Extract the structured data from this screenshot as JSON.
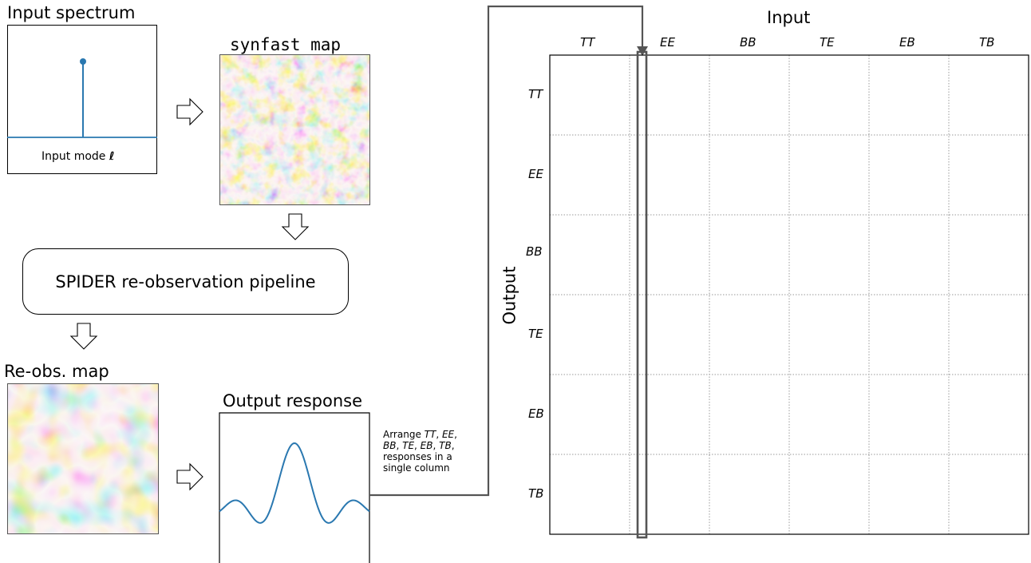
{
  "input_spectrum": {
    "title": "Input spectrum",
    "xlabel": "Input mode ",
    "xlabel_symbol": "ℓ"
  },
  "synfast_map": {
    "title": "synfast map"
  },
  "pipeline": {
    "label": "SPIDER re-observation pipeline"
  },
  "reobs_map": {
    "title": "Re-obs. map"
  },
  "output_response": {
    "title": "Output response"
  },
  "arrange_note": {
    "prefix": "Arrange ",
    "tt": "TT",
    "sep1": ", ",
    "ee": "EE",
    "sep2": ",",
    "bb": "BB",
    "sep3": ", ",
    "te": "TE",
    "sep4": ", ",
    "eb": "EB",
    "sep5": ", ",
    "tb": "TB",
    "sep6": ",",
    "line3": "responses in a",
    "line4": "single column"
  },
  "matrix": {
    "input_title": "Input",
    "output_title": "Output",
    "columns": [
      "TT",
      "EE",
      "BB",
      "TE",
      "EB",
      "TB"
    ],
    "rows": [
      "TT",
      "EE",
      "BB",
      "TE",
      "EB",
      "TB"
    ]
  },
  "colors": {
    "line": "#2a78b0",
    "highlight": "#555555",
    "map_red": "#8b2a12",
    "map_orange": "#d58a3a",
    "map_cream": "#f3ead6",
    "map_lightblue": "#a9cde8",
    "map_blue": "#2d6fb0"
  }
}
